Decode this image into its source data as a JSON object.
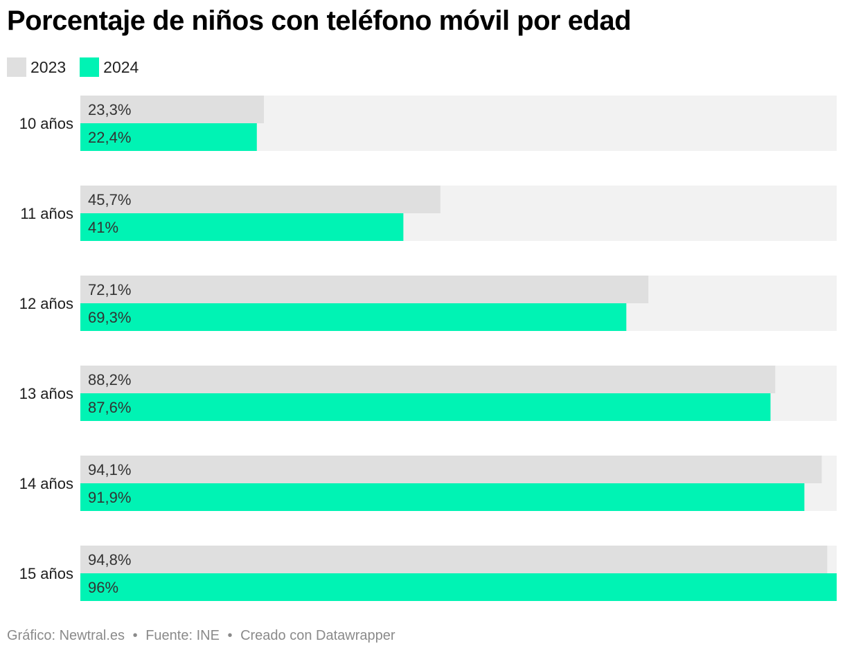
{
  "chart_data": {
    "type": "bar",
    "orientation": "horizontal",
    "title": "Porcentaje de niños con teléfono móvil por edad",
    "categories": [
      "10 años",
      "11 años",
      "12 años",
      "13 años",
      "14 años",
      "15 años"
    ],
    "series": [
      {
        "name": "2023",
        "values": [
          23.3,
          45.7,
          72.1,
          88.2,
          94.1,
          94.8
        ],
        "labels": [
          "23,3%",
          "45,7%",
          "72,1%",
          "88,2%",
          "94,1%",
          "94,8%"
        ],
        "color": "#dfdfdf"
      },
      {
        "name": "2024",
        "values": [
          22.4,
          41,
          69.3,
          87.6,
          91.9,
          96
        ],
        "labels": [
          "22,4%",
          "41%",
          "69,3%",
          "87,6%",
          "91,9%",
          "96%"
        ],
        "color": "#00f3b4"
      }
    ],
    "xlim": [
      0,
      96
    ],
    "background_color": "#f2f2f2",
    "legend_position": "top-left",
    "grid": false
  },
  "footer": {
    "credit": "Gráfico: Newtral.es",
    "source": "Fuente: INE",
    "tool": "Creado con Datawrapper",
    "separator": "•"
  }
}
